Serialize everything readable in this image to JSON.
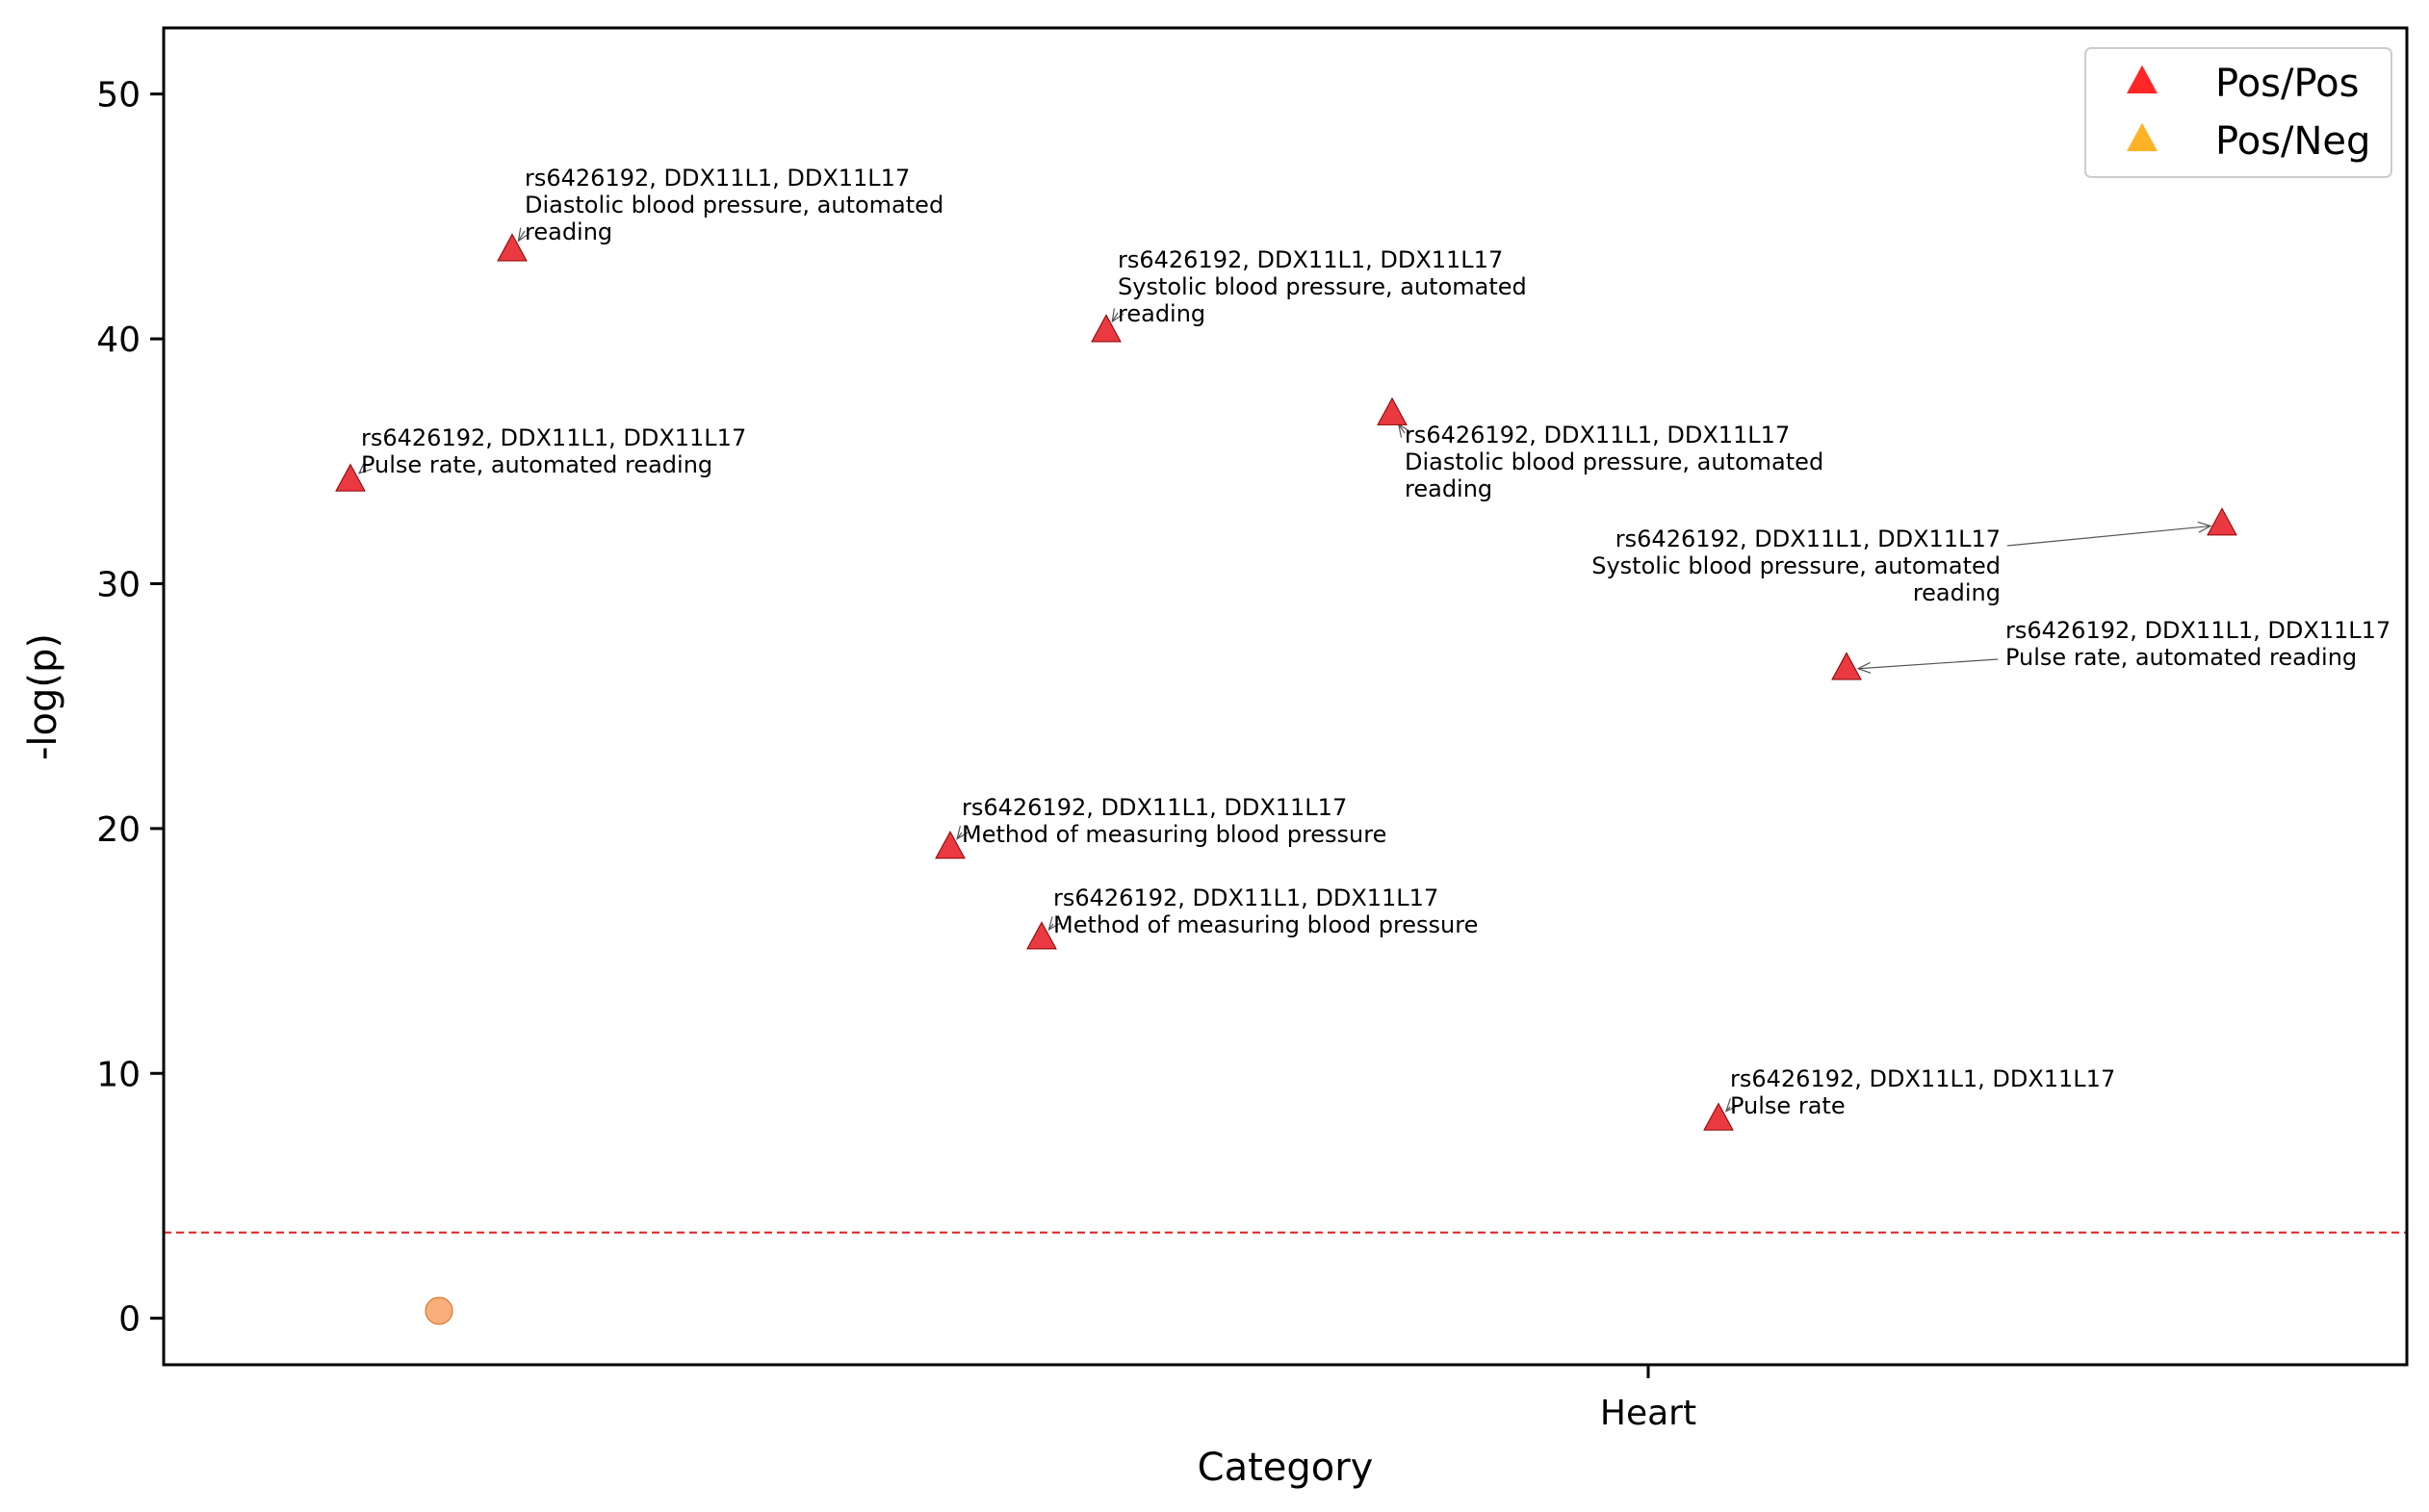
{
  "chart_data": {
    "type": "scatter",
    "title": "",
    "xlabel": "Category",
    "ylabel": "-log(p)",
    "ylim": [
      -1.9,
      52.7
    ],
    "yticks": [
      0,
      10,
      20,
      30,
      40,
      50
    ],
    "x_categories": [
      "Heart"
    ],
    "grid": false,
    "legend_placement": "top-right",
    "threshold": {
      "value": 3.5,
      "color": "#e31a1c",
      "style": "dashed"
    },
    "legend": [
      {
        "label": "Pos/Pos",
        "marker": "triangle",
        "color": "#ff0000"
      },
      {
        "label": "Pos/Neg",
        "marker": "triangle",
        "color": "#ffa500"
      }
    ],
    "series": [
      {
        "name": "Pos/Pos",
        "marker": "triangle",
        "color": "#e8242b",
        "points": [
          {
            "y": 43.6,
            "label_lines": [
              "rs6426192, DDX11L1, DDX11L17",
              "Diastolic blood pressure, automated",
              "reading"
            ]
          },
          {
            "y": 34.2,
            "label_lines": [
              "rs6426192, DDX11L1, DDX11L17",
              "Pulse rate, automated reading"
            ]
          },
          {
            "y": 40.3,
            "label_lines": [
              "rs6426192, DDX11L1, DDX11L17",
              "Systolic blood pressure, automated",
              "reading"
            ]
          },
          {
            "y": 36.9,
            "label_lines": [
              "rs6426192, DDX11L1, DDX11L17",
              "Diastolic blood pressure, automated",
              "reading"
            ]
          },
          {
            "y": 32.4,
            "label_lines": [
              "rs6426192, DDX11L1, DDX11L17",
              "Systolic blood pressure, automated",
              "reading"
            ]
          },
          {
            "y": 26.5,
            "label_lines": [
              "rs6426192, DDX11L1, DDX11L17",
              "Pulse rate, automated reading"
            ]
          },
          {
            "y": 19.2,
            "label_lines": [
              "rs6426192, DDX11L1, DDX11L17",
              "Method of measuring blood pressure"
            ]
          },
          {
            "y": 15.5,
            "label_lines": [
              "rs6426192, DDX11L1, DDX11L17",
              "Method of measuring blood pressure"
            ]
          },
          {
            "y": 8.1,
            "label_lines": [
              "rs6426192, DDX11L1, DDX11L17",
              "Pulse rate"
            ]
          }
        ]
      },
      {
        "name": "",
        "marker": "circle",
        "color": "#f9a56b",
        "points": [
          {
            "y": 0.3
          }
        ]
      }
    ]
  }
}
